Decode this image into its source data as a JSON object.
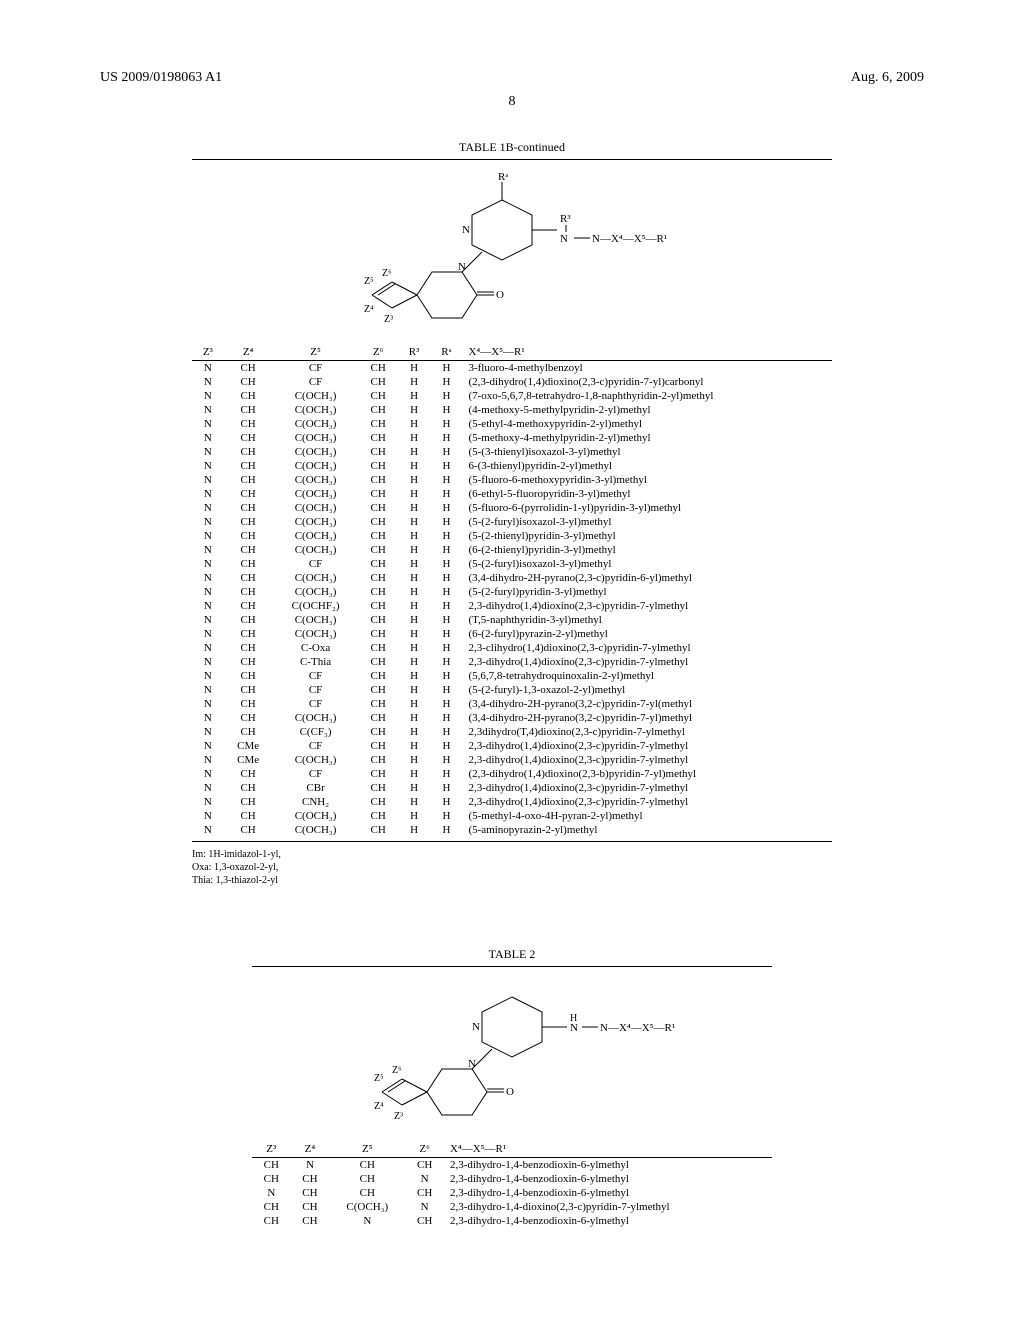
{
  "header": {
    "left": "US 2009/0198063 A1",
    "right": "Aug. 6, 2009",
    "page_number": "8"
  },
  "table1b": {
    "title": "TABLE 1B-continued",
    "diagram_labels": {
      "ra": "Rᵃ",
      "r3": "R³",
      "chain": "N—X⁴—X⁵—R¹",
      "z3": "Z³",
      "z4": "Z⁴",
      "z5": "Z⁵",
      "z6": "Z⁶",
      "n": "N",
      "o": "O"
    },
    "columns": [
      "Z³",
      "Z⁴",
      "Z⁵",
      "Z⁶",
      "R³",
      "Rᵃ",
      "X⁴—X⁵—R¹"
    ],
    "rows": [
      [
        "N",
        "CH",
        "CF",
        "CH",
        "H",
        "H",
        "3-fluoro-4-methylbenzoyl"
      ],
      [
        "N",
        "CH",
        "CF",
        "CH",
        "H",
        "H",
        "(2,3-dihydro(1,4)dioxino(2,3-c)pyridin-7-yl)carbonyl"
      ],
      [
        "N",
        "CH",
        "C(OCH₃)",
        "CH",
        "H",
        "H",
        "(7-oxo-5,6,7,8-tetrahydro-1,8-naphthyridin-2-yl)methyl"
      ],
      [
        "N",
        "CH",
        "C(OCH₃)",
        "CH",
        "H",
        "H",
        "(4-methoxy-5-methylpyridin-2-yl)methyl"
      ],
      [
        "N",
        "CH",
        "C(OCH₃)",
        "CH",
        "H",
        "H",
        "(5-ethyl-4-methoxypyridin-2-yl)methyl"
      ],
      [
        "N",
        "CH",
        "C(OCH₃)",
        "CH",
        "H",
        "H",
        "(5-methoxy-4-methylpyridin-2-yl)methyl"
      ],
      [
        "N",
        "CH",
        "C(OCH₃)",
        "CH",
        "H",
        "H",
        "(5-(3-thienyl)isoxazol-3-yl)methyl"
      ],
      [
        "N",
        "CH",
        "C(OCH₃)",
        "CH",
        "H",
        "H",
        "6-(3-thienyl)pyridin-2-yl)methyl"
      ],
      [
        "N",
        "CH",
        "C(OCH₃)",
        "CH",
        "H",
        "H",
        "(5-fluoro-6-methoxypyridin-3-yl)methyl"
      ],
      [
        "N",
        "CH",
        "C(OCH₃)",
        "CH",
        "H",
        "H",
        "(6-ethyl-5-fluoropyridin-3-yl)methyl"
      ],
      [
        "N",
        "CH",
        "C(OCH₃)",
        "CH",
        "H",
        "H",
        "(5-fluoro-6-(pyrrolidin-1-yl)pyridin-3-yl)methyl"
      ],
      [
        "N",
        "CH",
        "C(OCH₃)",
        "CH",
        "H",
        "H",
        "(5-(2-furyl)isoxazol-3-yl)methyl"
      ],
      [
        "N",
        "CH",
        "C(OCH₃)",
        "CH",
        "H",
        "H",
        "(5-(2-thienyl)pyridin-3-yl)methyl"
      ],
      [
        "N",
        "CH",
        "C(OCH₃)",
        "CH",
        "H",
        "H",
        "(6-(2-thienyl)pyridin-3-yl)methyl"
      ],
      [
        "N",
        "CH",
        "CF",
        "CH",
        "H",
        "H",
        "(5-(2-furyl)isoxazol-3-yl)methyl"
      ],
      [
        "N",
        "CH",
        "C(OCH₃)",
        "CH",
        "H",
        "H",
        "(3,4-dihydro-2H-pyrano(2,3-c)pyridin-6-yl)methyl"
      ],
      [
        "N",
        "CH",
        "C(OCH₃)",
        "CH",
        "H",
        "H",
        "(5-(2-furyl)pyridin-3-yl)methyl"
      ],
      [
        "N",
        "CH",
        "C(OCHF₂)",
        "CH",
        "H",
        "H",
        "2,3-dihydro(1,4)dioxino(2,3-c)pyridin-7-ylmethyl"
      ],
      [
        "N",
        "CH",
        "C(OCH₃)",
        "CH",
        "H",
        "H",
        "(T,5-naphthyridin-3-yl)methyl"
      ],
      [
        "N",
        "CH",
        "C(OCH₃)",
        "CH",
        "H",
        "H",
        "(6-(2-furyl)pyrazin-2-yl)methyl"
      ],
      [
        "N",
        "CH",
        "C-Oxa",
        "CH",
        "H",
        "H",
        "2,3-clihydro(1,4)dioxino(2,3-c)pyridin-7-ylmethyl"
      ],
      [
        "N",
        "CH",
        "C-Thia",
        "CH",
        "H",
        "H",
        "2,3-dihydro(1,4)dioxino(2,3-c)pyridin-7-ylmethyl"
      ],
      [
        "N",
        "CH",
        "CF",
        "CH",
        "H",
        "H",
        "(5,6,7,8-tetrahydroquinoxalin-2-yl)methyl"
      ],
      [
        "N",
        "CH",
        "CF",
        "CH",
        "H",
        "H",
        "(5-(2-furyl)-1,3-oxazol-2-yl)methyl"
      ],
      [
        "N",
        "CH",
        "CF",
        "CH",
        "H",
        "H",
        "(3,4-dihydro-2H-pyrano(3,2-c)pyridin-7-yl(methyl"
      ],
      [
        "N",
        "CH",
        "C(OCH₃)",
        "CH",
        "H",
        "H",
        "(3,4-dihydro-2H-pyrano(3,2-c)pyridin-7-yl)methyl"
      ],
      [
        "N",
        "CH",
        "C(CF₃)",
        "CH",
        "H",
        "H",
        "2,3dihydro(T,4)dioxino(2,3-c)pyridin-7-ylmethyl"
      ],
      [
        "N",
        "CMe",
        "CF",
        "CH",
        "H",
        "H",
        "2,3-dihydro(1,4)dioxino(2,3-c)pyridin-7-ylmethyl"
      ],
      [
        "N",
        "CMe",
        "C(OCH₃)",
        "CH",
        "H",
        "H",
        "2,3-dihydro(1,4)dioxino(2,3-c)pyridin-7-ylmethyl"
      ],
      [
        "N",
        "CH",
        "CF",
        "CH",
        "H",
        "H",
        "(2,3-dihydro(1,4)dioxino(2,3-b)pyridin-7-yl)methyl"
      ],
      [
        "N",
        "CH",
        "CBr",
        "CH",
        "H",
        "H",
        "2,3-dihydro(1,4)dioxino(2,3-c)pyridin-7-ylmethyl"
      ],
      [
        "N",
        "CH",
        "CNH₂",
        "CH",
        "H",
        "H",
        "2,3-dihydro(1,4)dioxino(2,3-c)pyridin-7-ylmethyl"
      ],
      [
        "N",
        "CH",
        "C(OCH₃)",
        "CH",
        "H",
        "H",
        "(5-methyl-4-oxo-4H-pyran-2-yl)methyl"
      ],
      [
        "N",
        "CH",
        "C(OCH₃)",
        "CH",
        "H",
        "H",
        "(5-aminopyrazin-2-yl)methyl"
      ]
    ],
    "footnotes": [
      "Im: 1H-imidazol-1-yl,",
      "Oxa: 1,3-oxazol-2-yl,",
      "Thia: 1,3-thiazol-2-yl"
    ]
  },
  "table2": {
    "title": "TABLE 2",
    "diagram_labels": {
      "chain": "N—X⁴—X⁵—R¹",
      "h": "H",
      "z3": "Z³",
      "z4": "Z⁴",
      "z5": "Z⁵",
      "z6": "Z⁶",
      "n": "N",
      "o": "O"
    },
    "columns": [
      "Z³",
      "Z⁴",
      "Z⁵",
      "Z⁶",
      "X⁴—X⁵—R¹"
    ],
    "rows": [
      [
        "CH",
        "N",
        "CH",
        "CH",
        "2,3-dihydro-1,4-benzodioxin-6-ylmethyl"
      ],
      [
        "CH",
        "CH",
        "CH",
        "N",
        "2,3-dihydro-1,4-benzodioxin-6-ylmethyl"
      ],
      [
        "N",
        "CH",
        "CH",
        "CH",
        "2,3-dihydro-1,4-benzodioxin-6-ylmethyl"
      ],
      [
        "CH",
        "CH",
        "C(OCH₃)",
        "N",
        "2,3-dihydro-1,4-dioxino(2,3-c)pyridin-7-ylmethyl"
      ],
      [
        "CH",
        "CH",
        "N",
        "CH",
        "2,3-dihydro-1,4-benzodioxin-6-ylmethyl"
      ]
    ]
  }
}
